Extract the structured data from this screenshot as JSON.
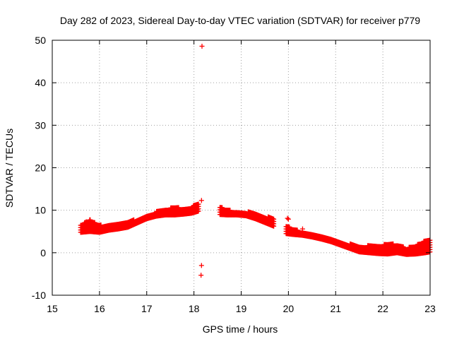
{
  "chart_data": {
    "type": "scatter",
    "title": "Day 282 of 2023, Sidereal Day-to-day VTEC variation (SDTVAR) for receiver p779",
    "xlabel": "GPS time / hours",
    "ylabel": "SDTVAR / TECUs",
    "xlim": [
      15,
      23
    ],
    "ylim": [
      -10,
      50
    ],
    "xticks": [
      "15",
      "16",
      "17",
      "18",
      "19",
      "20",
      "21",
      "22",
      "23"
    ],
    "yticks": [
      "-10",
      "0",
      "10",
      "20",
      "30",
      "40",
      "50"
    ],
    "grid": true,
    "marker": "+",
    "series": [
      {
        "name": "p779",
        "color": "#ff0000",
        "bands": [
          {
            "x": [
              15.6,
              15.8,
              16.0,
              16.2,
              16.4,
              16.6,
              16.8,
              17.0,
              17.2,
              17.4,
              17.6,
              17.8,
              17.95,
              18.1
            ],
            "low": [
              4.8,
              5.0,
              4.8,
              5.3,
              5.6,
              6.0,
              7.0,
              8.0,
              8.6,
              8.9,
              8.9,
              9.1,
              9.3,
              9.8
            ],
            "high": [
              6.6,
              7.8,
              6.5,
              6.7,
              6.9,
              7.3,
              8.0,
              8.9,
              9.7,
              10.3,
              10.8,
              10.4,
              10.8,
              12.0
            ]
          },
          {
            "x": [
              18.55,
              18.7,
              18.9,
              19.1,
              19.3,
              19.5,
              19.7
            ],
            "low": [
              9.0,
              8.9,
              8.9,
              8.7,
              8.0,
              7.1,
              6.2
            ],
            "high": [
              10.9,
              10.1,
              9.8,
              9.7,
              9.4,
              8.6,
              8.2
            ]
          },
          {
            "x": [
              19.95,
              20.1,
              20.3,
              20.5,
              20.7,
              20.9,
              21.1,
              21.3,
              21.5,
              21.7,
              21.9,
              22.1,
              22.3,
              22.5,
              22.7,
              22.9,
              23.0
            ],
            "low": [
              4.5,
              4.3,
              4.1,
              3.7,
              3.2,
              2.6,
              1.8,
              1.0,
              0.2,
              0.0,
              -0.2,
              -0.3,
              0.0,
              -0.4,
              -0.3,
              0.0,
              0.2
            ],
            "high": [
              6.5,
              5.6,
              5.0,
              4.4,
              3.8,
              3.2,
              2.8,
              2.1,
              1.6,
              1.7,
              1.5,
              2.2,
              2.0,
              1.1,
              1.8,
              2.9,
              3.4
            ]
          }
        ],
        "points": [
          {
            "x": 18.17,
            "y": 48.6
          },
          {
            "x": 18.16,
            "y": 12.3
          },
          {
            "x": 18.16,
            "y": -3.0
          },
          {
            "x": 18.15,
            "y": -5.3
          },
          {
            "x": 19.98,
            "y": 8.1
          },
          {
            "x": 20.0,
            "y": 7.9
          },
          {
            "x": 15.72,
            "y": 7.3
          },
          {
            "x": 20.3,
            "y": 5.6
          }
        ]
      }
    ]
  }
}
